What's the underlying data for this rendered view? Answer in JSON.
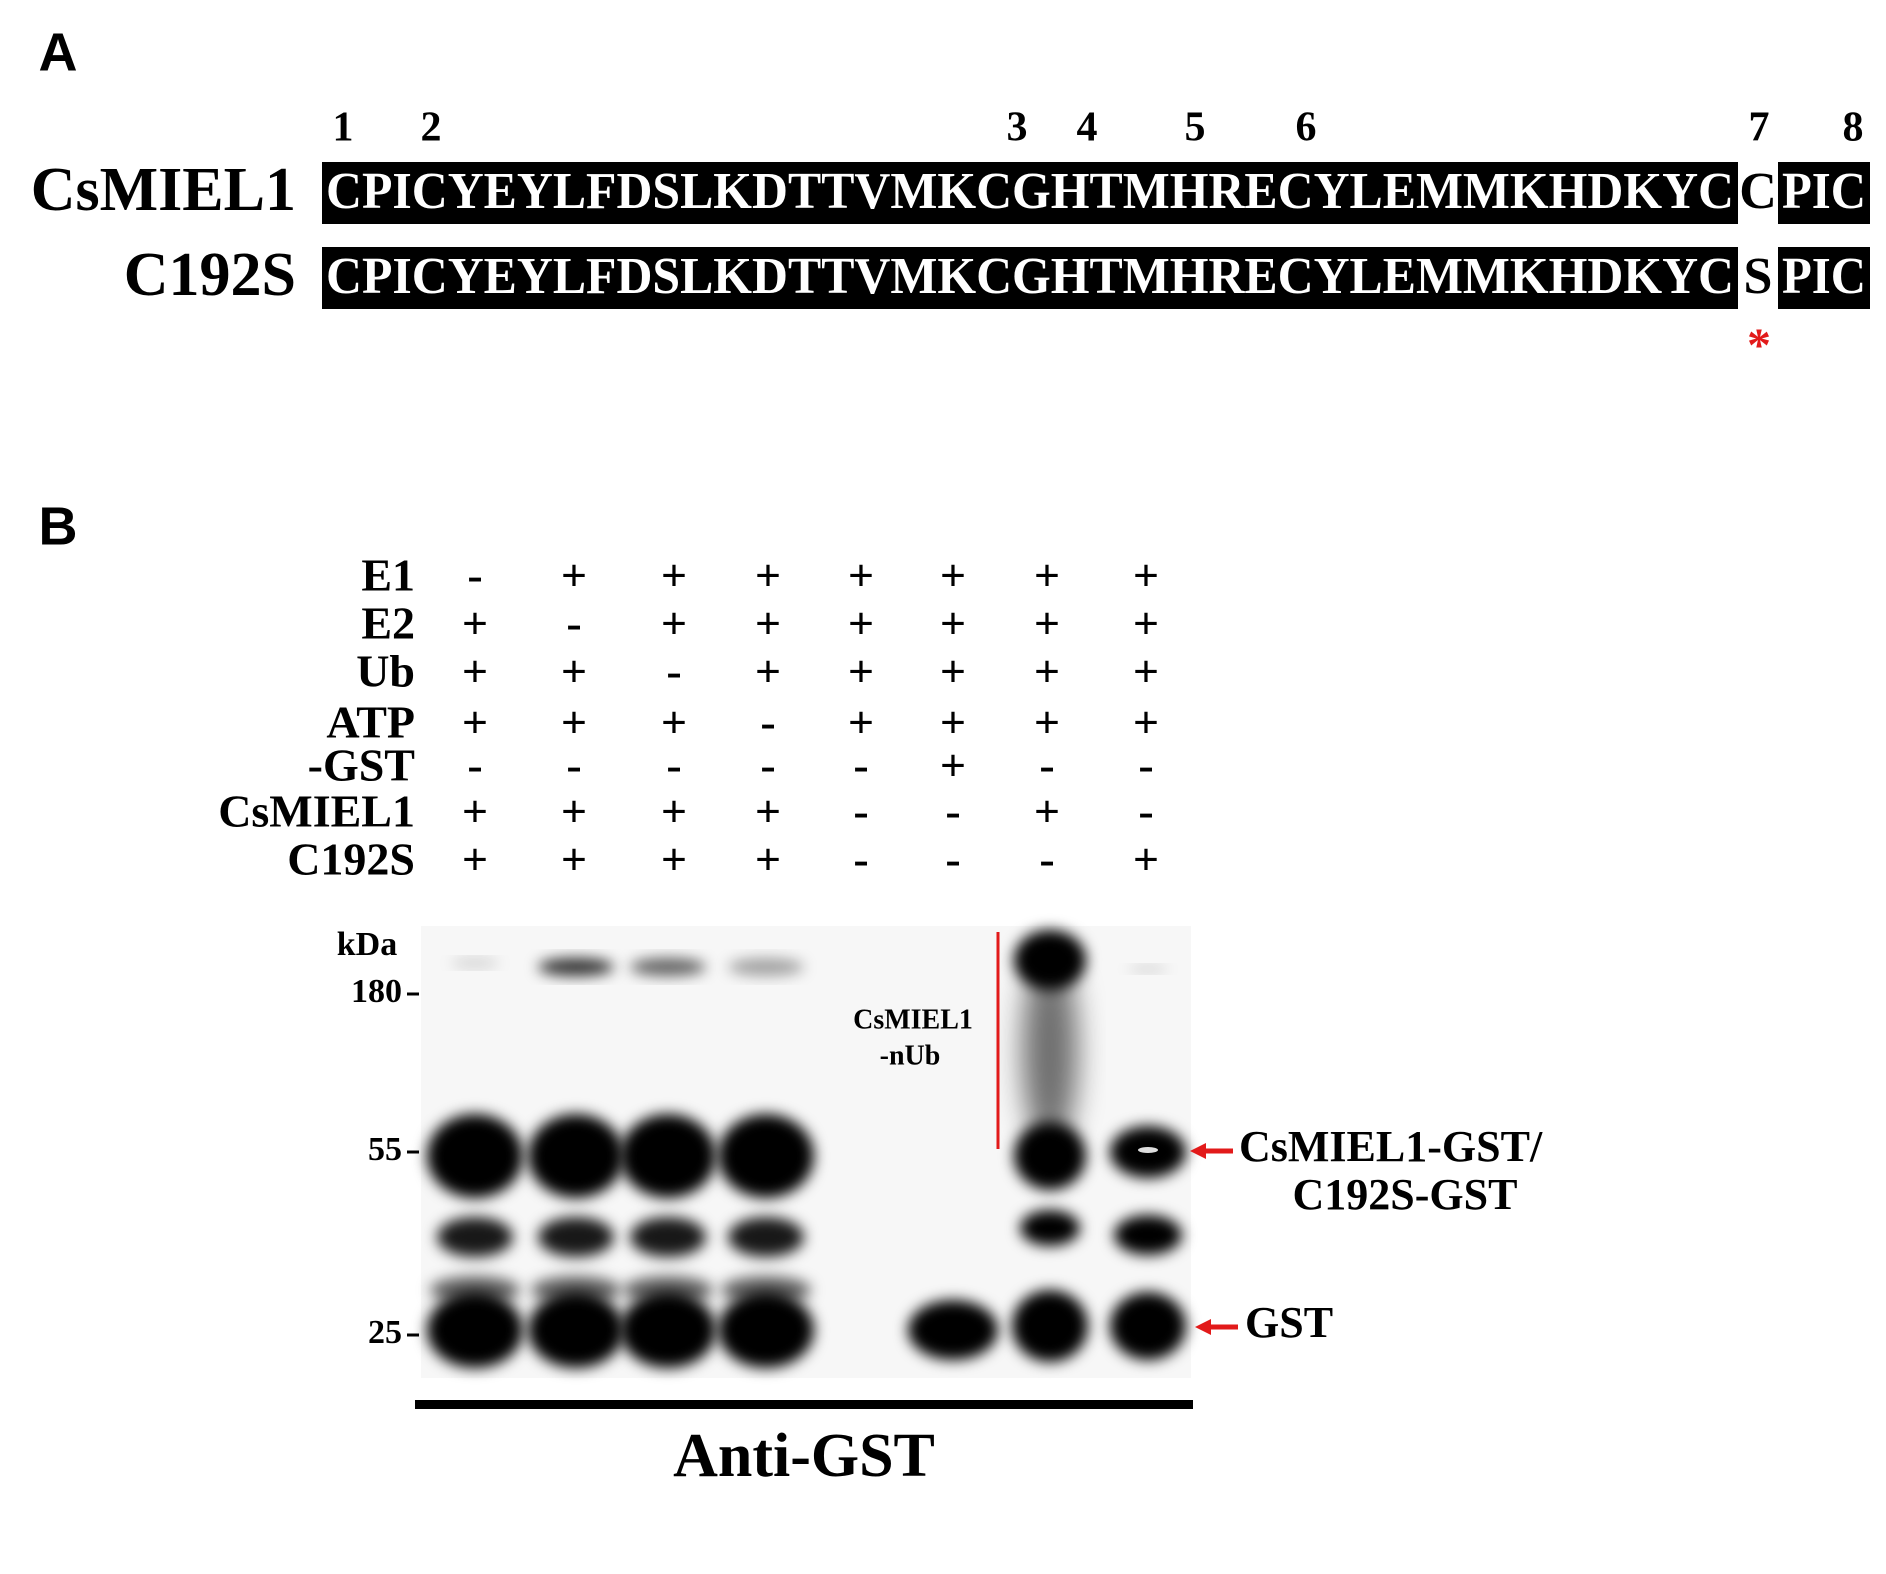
{
  "panel_a": {
    "label": "A",
    "position_numbers": [
      "1",
      "2",
      "3",
      "4",
      "5",
      "6",
      "7",
      "8"
    ],
    "rows": [
      {
        "name": "CsMIEL1",
        "sequence": "CPICYEYLFDSLKDTTVMKCGHTMHRECYLEMMKHDKYC",
        "variant": "C",
        "tail": "PIC"
      },
      {
        "name": "C192S",
        "sequence": "CPICYEYLFDSLKDTTVMKCGHTMHRECYLEMMKHDKYC",
        "variant": "S",
        "tail": "PIC"
      }
    ],
    "marker": "*"
  },
  "panel_b": {
    "label": "B",
    "conditions": [
      {
        "name": "E1",
        "signs": [
          "-",
          "+",
          "+",
          "+",
          "+",
          "+",
          "+",
          "+"
        ]
      },
      {
        "name": "E2",
        "signs": [
          "+",
          "-",
          "+",
          "+",
          "+",
          "+",
          "+",
          "+"
        ]
      },
      {
        "name": "Ub",
        "signs": [
          "+",
          "+",
          "-",
          "+",
          "+",
          "+",
          "+",
          "+"
        ]
      },
      {
        "name": "ATP",
        "signs": [
          "+",
          "+",
          "+",
          "-",
          "+",
          "+",
          "+",
          "+"
        ]
      },
      {
        "name": "-GST",
        "signs": [
          "-",
          "-",
          "-",
          "-",
          "-",
          "+",
          "-",
          "-"
        ]
      },
      {
        "name": "CsMIEL1",
        "signs": [
          "+",
          "+",
          "+",
          "+",
          "-",
          "-",
          "+",
          "-"
        ]
      },
      {
        "name": "C192S",
        "signs": [
          "+",
          "+",
          "+",
          "+",
          "-",
          "-",
          "-",
          "+"
        ]
      }
    ],
    "kda_label": "kDa",
    "markers": [
      "180",
      "55",
      "25"
    ],
    "smear_label": [
      "CsMIEL1",
      "-nUb"
    ],
    "band_labels": {
      "fusion": [
        "CsMIEL1-GST/",
        "C192S-GST"
      ],
      "gst": "GST"
    },
    "antibody": "Anti-GST"
  }
}
